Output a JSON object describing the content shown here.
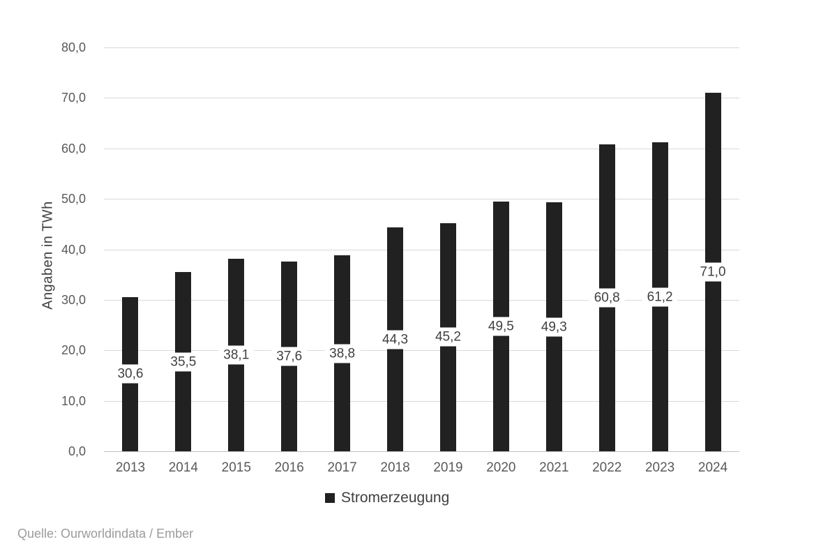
{
  "chart_data": {
    "type": "bar",
    "title": "",
    "categories": [
      "2013",
      "2014",
      "2015",
      "2016",
      "2017",
      "2018",
      "2019",
      "2020",
      "2021",
      "2022",
      "2023",
      "2024"
    ],
    "series": [
      {
        "name": "Stromerzeugung",
        "values": [
          30.6,
          35.5,
          38.1,
          37.6,
          38.8,
          44.3,
          45.2,
          49.5,
          49.3,
          60.8,
          61.2,
          71.0
        ],
        "labels": [
          "30,6",
          "35,5",
          "38,1",
          "37,6",
          "38,8",
          "44,3",
          "45,2",
          "49,5",
          "49,3",
          "60,8",
          "61,2",
          "71,0"
        ]
      }
    ],
    "xlabel": "",
    "ylabel": "Angaben in TWh",
    "ylim": [
      0,
      80
    ],
    "ytick_step": 10,
    "ytick_labels": [
      "0,0",
      "10,0",
      "20,0",
      "30,0",
      "40,0",
      "50,0",
      "60,0",
      "70,0",
      "80,0"
    ],
    "grid": true,
    "legend_position": "bottom",
    "data_label_style": "inside-center-white-box"
  },
  "legend": {
    "label": "Stromerzeugung"
  },
  "source": {
    "text": "Quelle: Ourworldindata / Ember"
  },
  "colors": {
    "bar": "#212121",
    "gridline": "#d9d9d9",
    "axis_line": "#bfbfbf",
    "tick_label": "#595959",
    "data_label": "#404040",
    "legend_text": "#404040",
    "source_text": "#9b9b9b"
  }
}
